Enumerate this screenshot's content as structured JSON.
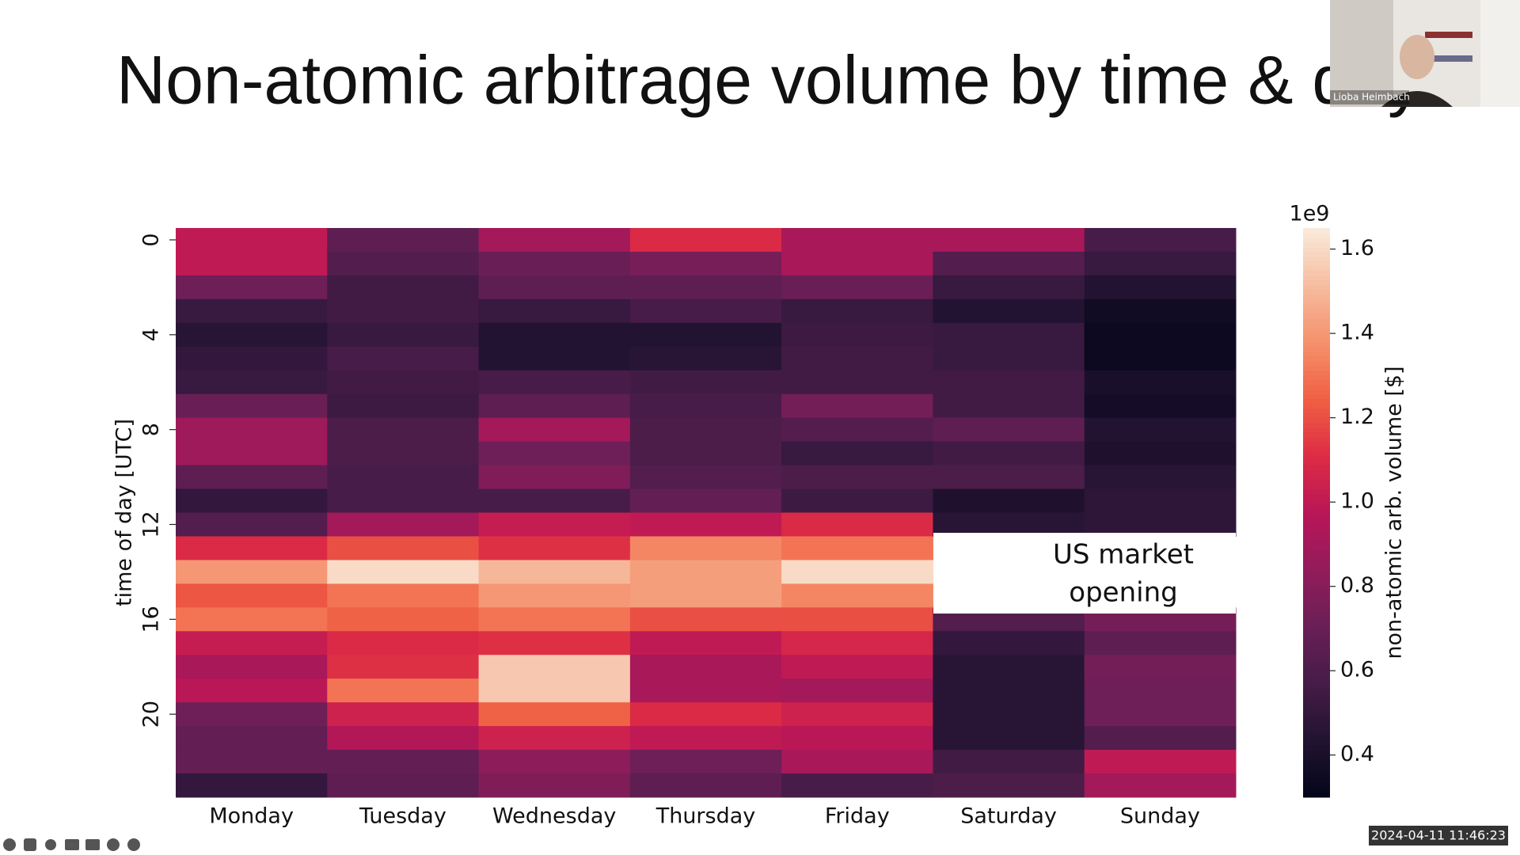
{
  "slide_title": "Non-atomic arbitrage volume by time & day",
  "chart_data": {
    "type": "heatmap",
    "categories": [
      "Monday",
      "Tuesday",
      "Wednesday",
      "Thursday",
      "Friday",
      "Saturday",
      "Sunday"
    ],
    "ylabel": "time of day [UTC]",
    "ylim": [
      0,
      24
    ],
    "yticks": [
      0,
      4,
      8,
      12,
      16,
      20
    ],
    "matrix": [
      [
        1.0,
        1.0,
        0.72,
        0.52,
        0.46,
        0.5,
        0.52,
        0.7,
        0.88,
        0.88,
        0.66,
        0.5,
        0.62,
        1.1,
        1.4,
        1.22,
        1.3,
        1.02,
        0.92,
        0.98,
        0.72,
        0.68,
        0.68,
        0.5
      ],
      [
        0.66,
        0.62,
        0.56,
        0.56,
        0.52,
        0.58,
        0.56,
        0.54,
        0.6,
        0.6,
        0.58,
        0.58,
        0.9,
        1.2,
        1.6,
        1.3,
        1.25,
        1.1,
        1.12,
        1.3,
        1.05,
        0.95,
        0.68,
        0.66
      ],
      [
        0.9,
        0.7,
        0.66,
        0.52,
        0.44,
        0.44,
        0.58,
        0.66,
        0.9,
        0.72,
        0.78,
        0.58,
        1.02,
        1.12,
        1.5,
        1.4,
        1.3,
        1.12,
        1.55,
        1.55,
        1.25,
        1.05,
        0.82,
        0.78
      ],
      [
        1.1,
        0.75,
        0.66,
        0.58,
        0.44,
        0.46,
        0.56,
        0.58,
        0.6,
        0.6,
        0.62,
        0.68,
        1.0,
        1.35,
        1.42,
        1.42,
        1.2,
        1.0,
        0.92,
        0.92,
        1.1,
        1.0,
        0.72,
        0.66
      ],
      [
        0.92,
        0.92,
        0.7,
        0.52,
        0.54,
        0.56,
        0.56,
        0.74,
        0.62,
        0.52,
        0.6,
        0.54,
        1.1,
        1.3,
        1.6,
        1.35,
        1.2,
        1.08,
        1.0,
        0.9,
        1.05,
        0.98,
        0.92,
        0.58
      ],
      [
        0.92,
        0.62,
        0.52,
        0.44,
        0.52,
        0.52,
        0.56,
        0.56,
        0.66,
        0.56,
        0.6,
        0.42,
        0.46,
        null,
        null,
        null,
        0.62,
        0.5,
        0.46,
        0.46,
        0.46,
        0.46,
        0.56,
        0.6
      ],
      [
        0.58,
        0.52,
        0.44,
        0.36,
        0.34,
        0.34,
        0.4,
        0.38,
        0.44,
        0.42,
        0.46,
        0.48,
        0.48,
        null,
        null,
        null,
        0.74,
        0.66,
        0.74,
        0.72,
        0.72,
        0.62,
        1.0,
        0.9
      ]
    ],
    "colormap": "rocket",
    "clim": [
      0.3,
      1.65
    ],
    "cticks": [
      0.4,
      0.6,
      0.8,
      {
        "value": 1,
        "label": "1.0"
      },
      1.2,
      1.4,
      1.6
    ],
    "colorbar_offset": "1e9",
    "colorbar_label": "non-atomic arb. volume [$]",
    "annotation": [
      "US market",
      "opening"
    ]
  },
  "video_tile": {
    "name": "Lioba Heimbach"
  },
  "timestamp": "2024-04-11 11:46:23"
}
